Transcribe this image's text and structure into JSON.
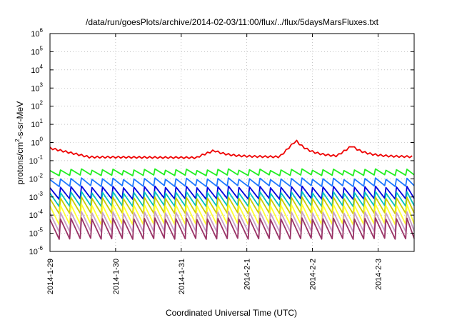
{
  "chart_data": {
    "type": "line",
    "title": "/data/run/goesPlots/archive/2014-02-03/11:00/flux/../flux/5daysMarsFluxes.txt",
    "xlabel": "Coordinated Universal Time (UTC)",
    "ylabel": "protons/cm2-s-sr-MeV",
    "ylabel_parts": {
      "pre": "protons/cm",
      "sup": "2",
      "post": "-s-sr-MeV"
    },
    "yscale": "log",
    "ylim_exp": [
      -6,
      6
    ],
    "y_ticks": [
      {
        "base": "10",
        "exp": "-6"
      },
      {
        "base": "10",
        "exp": "-5"
      },
      {
        "base": "10",
        "exp": "-4"
      },
      {
        "base": "10",
        "exp": "-3"
      },
      {
        "base": "10",
        "exp": "-2"
      },
      {
        "base": "10",
        "exp": "-1"
      },
      {
        "base": "10",
        "exp": "0"
      },
      {
        "base": "10",
        "exp": "1"
      },
      {
        "base": "10",
        "exp": "2"
      },
      {
        "base": "10",
        "exp": "3"
      },
      {
        "base": "10",
        "exp": "4"
      },
      {
        "base": "10",
        "exp": "5"
      },
      {
        "base": "10",
        "exp": "6"
      }
    ],
    "xlim_days": [
      0,
      5.55
    ],
    "x_ticks": [
      {
        "label": "2014-1-29",
        "day": 0
      },
      {
        "label": "2014-1-30",
        "day": 1
      },
      {
        "label": "2014-1-31",
        "day": 2
      },
      {
        "label": "2014-2-1",
        "day": 3
      },
      {
        "label": "2014-2-2",
        "day": 4
      },
      {
        "label": "2014-2-3",
        "day": 5
      }
    ],
    "grid": true,
    "sawtooth_period_days": 0.16,
    "series": [
      {
        "color": "#ee0000",
        "kind": "upper",
        "base_log": -0.8,
        "event_days": [
          2.5,
          3.75,
          4.6
        ],
        "event_peak_log": [
          -0.45,
          0.1,
          -0.2
        ]
      },
      {
        "color": "#22ee22",
        "kind": "saw",
        "high_log": -1.5,
        "low_log": -1.8
      },
      {
        "color": "#1e78ff",
        "kind": "saw",
        "high_log": -2.0,
        "low_log": -2.4
      },
      {
        "color": "#0000dd",
        "kind": "saw",
        "high_log": -2.45,
        "low_log": -3.1
      },
      {
        "color": "#00c0c0",
        "kind": "saw",
        "high_log": -2.75,
        "low_log": -3.5
      },
      {
        "color": "#cccc00",
        "kind": "saw",
        "high_log": -3.05,
        "low_log": -3.9
      },
      {
        "color": "#ffff33",
        "kind": "saw",
        "high_log": -3.45,
        "low_log": -4.5
      },
      {
        "color": "#c8a0c8",
        "kind": "saw",
        "high_log": -3.85,
        "low_log": -4.9
      },
      {
        "color": "#993366",
        "kind": "saw",
        "high_log": -4.2,
        "low_log": -5.3
      }
    ]
  }
}
